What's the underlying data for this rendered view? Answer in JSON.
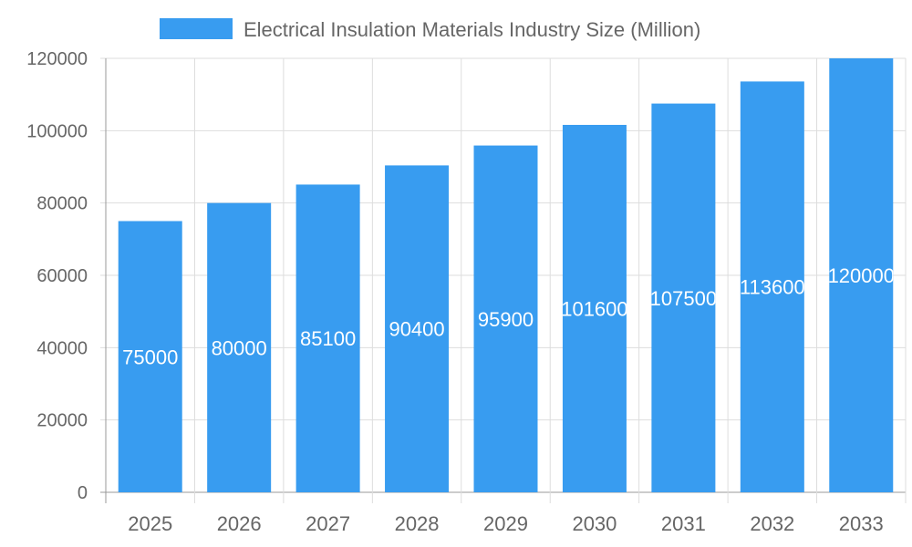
{
  "chart_data": {
    "type": "bar",
    "categories": [
      "2025",
      "2026",
      "2027",
      "2028",
      "2029",
      "2030",
      "2031",
      "2032",
      "2033"
    ],
    "series": [
      {
        "name": "Electrical Insulation Materials Industry Size (Million)",
        "values": [
          75000,
          80000,
          85100,
          90400,
          95900,
          101600,
          107500,
          113600,
          120000
        ]
      }
    ],
    "ylim": [
      0,
      120000
    ],
    "yticks": [
      0,
      20000,
      40000,
      60000,
      80000,
      100000,
      120000
    ],
    "grid": true,
    "legend": "top",
    "data_labels": true,
    "colors": {
      "bar": "#389cf0",
      "grid": "#dddddd",
      "axis": "#999999",
      "text": "#666666",
      "label": "#ffffff"
    }
  }
}
